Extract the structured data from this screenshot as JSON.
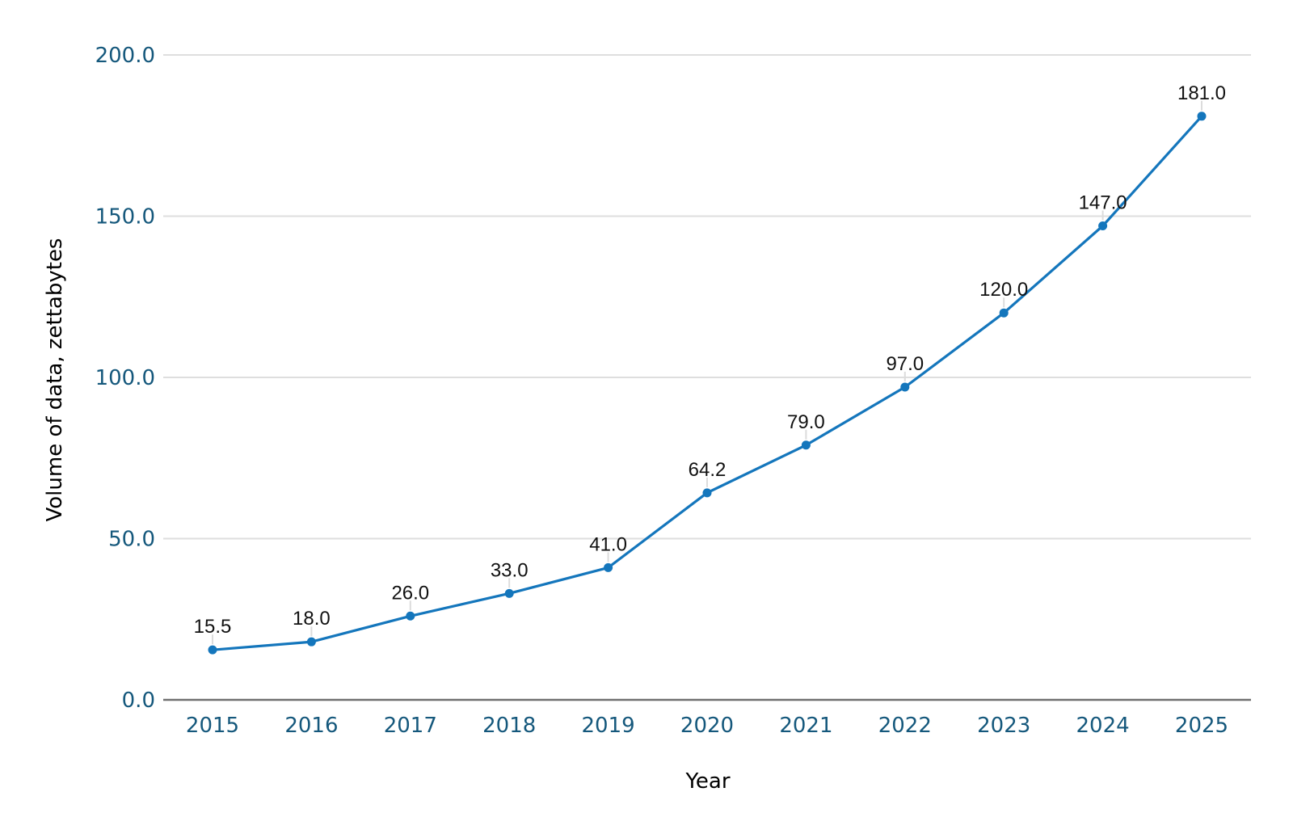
{
  "chart_data": {
    "type": "line",
    "title": "",
    "xlabel": "Year",
    "ylabel": "Volume of data, zettabytes",
    "categories": [
      "2015",
      "2016",
      "2017",
      "2018",
      "2019",
      "2020",
      "2021",
      "2022",
      "2023",
      "2024",
      "2025"
    ],
    "series": [
      {
        "name": "Volume of data",
        "values": [
          15.5,
          18.0,
          26.0,
          33.0,
          41.0,
          64.2,
          79.0,
          97.0,
          120.0,
          147.0,
          181.0
        ],
        "point_labels": [
          "15.5",
          "18.0",
          "26.0",
          "33.0",
          "41.0",
          "64.2",
          "79.0",
          "97.0",
          "120.0",
          "147.0",
          "181.0"
        ]
      }
    ],
    "ylim": [
      0,
      200
    ],
    "ytick_values": [
      0,
      50,
      100,
      150,
      200
    ],
    "ytick_labels": [
      "0.0",
      "50.0",
      "100.0",
      "150.0",
      "200.0"
    ],
    "grid": true,
    "legend_position": "none",
    "colors": {
      "line": "#1476bc",
      "marker": "#1476bc",
      "axis_text": "#15587c",
      "data_label": "#111111",
      "gridline": "#dedede",
      "zero_line": "#707070",
      "leader_line": "#dcdcdc",
      "background": "#ffffff"
    }
  }
}
